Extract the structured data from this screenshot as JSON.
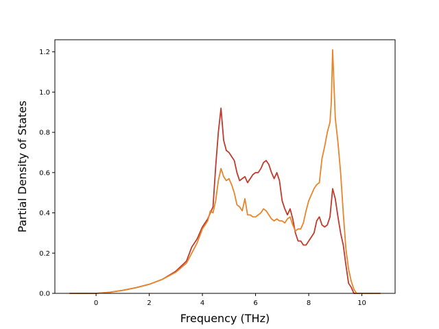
{
  "chart_data": {
    "type": "line",
    "xlabel": "Frequency (THz)",
    "ylabel": "Partial Density of States",
    "xlim": [
      -1.55,
      11.25
    ],
    "ylim": [
      0.0,
      1.26
    ],
    "xticks": [
      0,
      2,
      4,
      6,
      8,
      10
    ],
    "yticks": [
      0.0,
      0.2,
      0.4,
      0.6,
      0.8,
      1.0,
      1.2
    ],
    "grid": false,
    "series": [
      {
        "color": "#c0392b",
        "points": [
          [
            -1.0,
            0.0
          ],
          [
            -0.5,
            0.0
          ],
          [
            0.0,
            0.0
          ],
          [
            0.5,
            0.005
          ],
          [
            1.0,
            0.015
          ],
          [
            1.5,
            0.028
          ],
          [
            2.0,
            0.045
          ],
          [
            2.5,
            0.07
          ],
          [
            3.0,
            0.11
          ],
          [
            3.4,
            0.16
          ],
          [
            3.6,
            0.23
          ],
          [
            3.8,
            0.27
          ],
          [
            4.0,
            0.33
          ],
          [
            4.2,
            0.37
          ],
          [
            4.3,
            0.4
          ],
          [
            4.4,
            0.43
          ],
          [
            4.5,
            0.63
          ],
          [
            4.6,
            0.8
          ],
          [
            4.7,
            0.92
          ],
          [
            4.8,
            0.76
          ],
          [
            4.9,
            0.71
          ],
          [
            5.0,
            0.7
          ],
          [
            5.1,
            0.68
          ],
          [
            5.2,
            0.66
          ],
          [
            5.3,
            0.6
          ],
          [
            5.4,
            0.56
          ],
          [
            5.5,
            0.57
          ],
          [
            5.6,
            0.58
          ],
          [
            5.7,
            0.55
          ],
          [
            5.8,
            0.57
          ],
          [
            5.9,
            0.59
          ],
          [
            6.0,
            0.6
          ],
          [
            6.1,
            0.6
          ],
          [
            6.2,
            0.62
          ],
          [
            6.3,
            0.65
          ],
          [
            6.4,
            0.66
          ],
          [
            6.5,
            0.64
          ],
          [
            6.6,
            0.6
          ],
          [
            6.7,
            0.57
          ],
          [
            6.8,
            0.6
          ],
          [
            6.9,
            0.56
          ],
          [
            7.0,
            0.46
          ],
          [
            7.1,
            0.42
          ],
          [
            7.2,
            0.39
          ],
          [
            7.3,
            0.42
          ],
          [
            7.4,
            0.37
          ],
          [
            7.5,
            0.3
          ],
          [
            7.6,
            0.26
          ],
          [
            7.7,
            0.26
          ],
          [
            7.8,
            0.24
          ],
          [
            7.9,
            0.24
          ],
          [
            8.0,
            0.26
          ],
          [
            8.1,
            0.28
          ],
          [
            8.2,
            0.3
          ],
          [
            8.3,
            0.36
          ],
          [
            8.4,
            0.38
          ],
          [
            8.5,
            0.34
          ],
          [
            8.6,
            0.33
          ],
          [
            8.7,
            0.34
          ],
          [
            8.8,
            0.38
          ],
          [
            8.9,
            0.52
          ],
          [
            9.0,
            0.47
          ],
          [
            9.1,
            0.38
          ],
          [
            9.2,
            0.3
          ],
          [
            9.3,
            0.24
          ],
          [
            9.4,
            0.14
          ],
          [
            9.5,
            0.05
          ],
          [
            9.6,
            0.03
          ],
          [
            9.7,
            0.0
          ],
          [
            10.0,
            0.0
          ],
          [
            10.7,
            0.0
          ]
        ]
      },
      {
        "color": "#e8842a",
        "points": [
          [
            -1.0,
            0.0
          ],
          [
            -0.5,
            0.0
          ],
          [
            0.0,
            0.0
          ],
          [
            0.5,
            0.005
          ],
          [
            1.0,
            0.015
          ],
          [
            1.5,
            0.028
          ],
          [
            2.0,
            0.045
          ],
          [
            2.5,
            0.07
          ],
          [
            3.0,
            0.105
          ],
          [
            3.4,
            0.15
          ],
          [
            3.6,
            0.2
          ],
          [
            3.8,
            0.25
          ],
          [
            4.0,
            0.32
          ],
          [
            4.2,
            0.36
          ],
          [
            4.3,
            0.41
          ],
          [
            4.4,
            0.4
          ],
          [
            4.5,
            0.46
          ],
          [
            4.6,
            0.56
          ],
          [
            4.7,
            0.62
          ],
          [
            4.8,
            0.58
          ],
          [
            4.9,
            0.56
          ],
          [
            5.0,
            0.57
          ],
          [
            5.1,
            0.54
          ],
          [
            5.2,
            0.5
          ],
          [
            5.3,
            0.44
          ],
          [
            5.4,
            0.43
          ],
          [
            5.5,
            0.41
          ],
          [
            5.6,
            0.47
          ],
          [
            5.7,
            0.39
          ],
          [
            5.8,
            0.39
          ],
          [
            5.9,
            0.38
          ],
          [
            6.0,
            0.38
          ],
          [
            6.1,
            0.39
          ],
          [
            6.2,
            0.4
          ],
          [
            6.3,
            0.42
          ],
          [
            6.4,
            0.41
          ],
          [
            6.5,
            0.39
          ],
          [
            6.6,
            0.37
          ],
          [
            6.7,
            0.36
          ],
          [
            6.8,
            0.37
          ],
          [
            6.9,
            0.36
          ],
          [
            7.0,
            0.36
          ],
          [
            7.1,
            0.35
          ],
          [
            7.2,
            0.37
          ],
          [
            7.3,
            0.38
          ],
          [
            7.4,
            0.34
          ],
          [
            7.5,
            0.31
          ],
          [
            7.6,
            0.32
          ],
          [
            7.7,
            0.32
          ],
          [
            7.8,
            0.35
          ],
          [
            7.9,
            0.41
          ],
          [
            8.0,
            0.46
          ],
          [
            8.1,
            0.49
          ],
          [
            8.2,
            0.52
          ],
          [
            8.3,
            0.54
          ],
          [
            8.4,
            0.55
          ],
          [
            8.5,
            0.67
          ],
          [
            8.6,
            0.73
          ],
          [
            8.7,
            0.8
          ],
          [
            8.8,
            0.85
          ],
          [
            8.85,
            0.95
          ],
          [
            8.9,
            1.21
          ],
          [
            9.0,
            0.87
          ],
          [
            9.1,
            0.75
          ],
          [
            9.2,
            0.6
          ],
          [
            9.3,
            0.4
          ],
          [
            9.4,
            0.22
          ],
          [
            9.5,
            0.12
          ],
          [
            9.6,
            0.06
          ],
          [
            9.7,
            0.02
          ],
          [
            9.8,
            0.0
          ],
          [
            10.0,
            0.0
          ],
          [
            10.7,
            0.0
          ]
        ]
      }
    ]
  }
}
